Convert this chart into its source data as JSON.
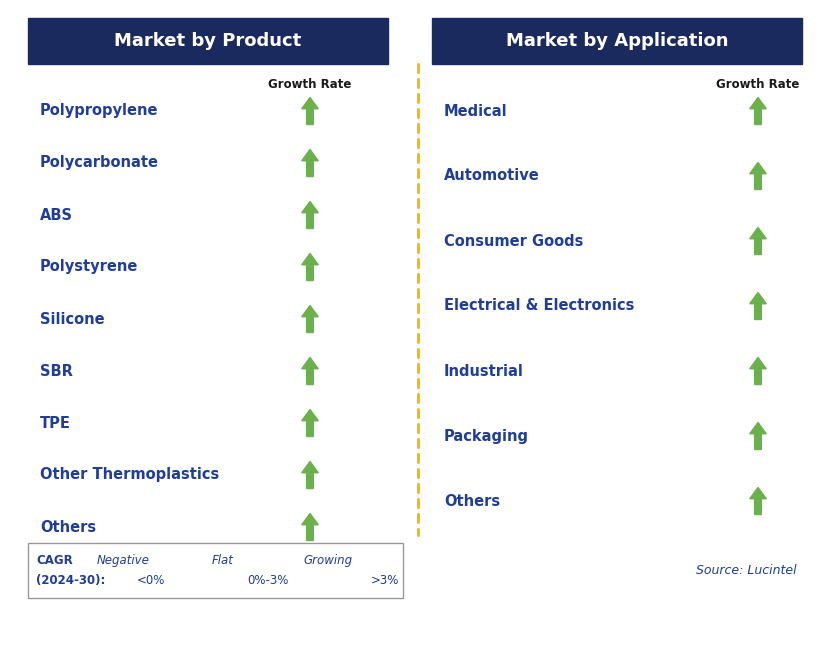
{
  "title_left": "Market by Product",
  "title_right": "Market by Application",
  "header_bg_color": "#1a2a5e",
  "header_text_color": "#ffffff",
  "item_text_color": "#1f3d99",
  "growth_rate_color": "#1a1a1a",
  "growth_rate_label": "Growth Rate",
  "products": [
    "Polypropylene",
    "Polycarbonate",
    "ABS",
    "Polystyrene",
    "Silicone",
    "SBR",
    "TPE",
    "Other Thermoplastics",
    "Others"
  ],
  "applications": [
    "Medical",
    "Automotive",
    "Consumer Goods",
    "Electrical & Electronics",
    "Industrial",
    "Packaging",
    "Others"
  ],
  "legend_cagr_line1": "CAGR",
  "legend_cagr_line2": "(2024-30):",
  "legend_negative_label": "Negative",
  "legend_negative_range": "<0%",
  "legend_flat_label": "Flat",
  "legend_flat_range": "0%-3%",
  "legend_growing_label": "Growing",
  "legend_growing_range": ">3%",
  "source_text": "Source: Lucintel",
  "arrow_up_green": "#6ab04c",
  "arrow_down_red": "#cc0000",
  "arrow_right_yellow": "#f0a500",
  "divider_color": "#f0c000",
  "bg_color": "#ffffff",
  "fig_width": 8.29,
  "fig_height": 6.66,
  "dpi": 100
}
